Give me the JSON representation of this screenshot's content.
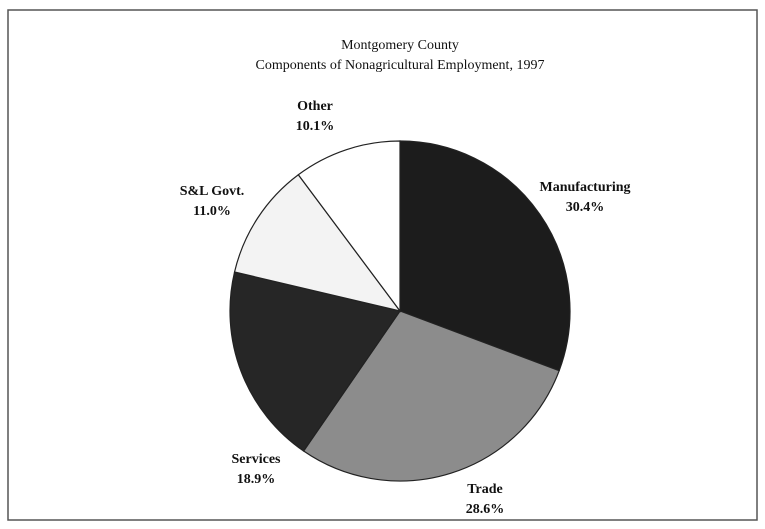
{
  "chart_data": {
    "type": "pie",
    "title": "Montgomery County",
    "subtitle": "Components of Nonagricultural Employment, 1997",
    "categories": [
      "Manufacturing",
      "Trade",
      "Services",
      "S&L Govt.",
      "Other"
    ],
    "values": [
      30.4,
      28.6,
      18.9,
      11.0,
      10.1
    ],
    "value_labels": [
      "30.4%",
      "28.6%",
      "18.9%",
      "11.0%",
      "10.1%"
    ],
    "colors": [
      "#1c1c1c",
      "#8c8c8c",
      "#262626",
      "#f3f3f3",
      "#ffffff"
    ]
  }
}
